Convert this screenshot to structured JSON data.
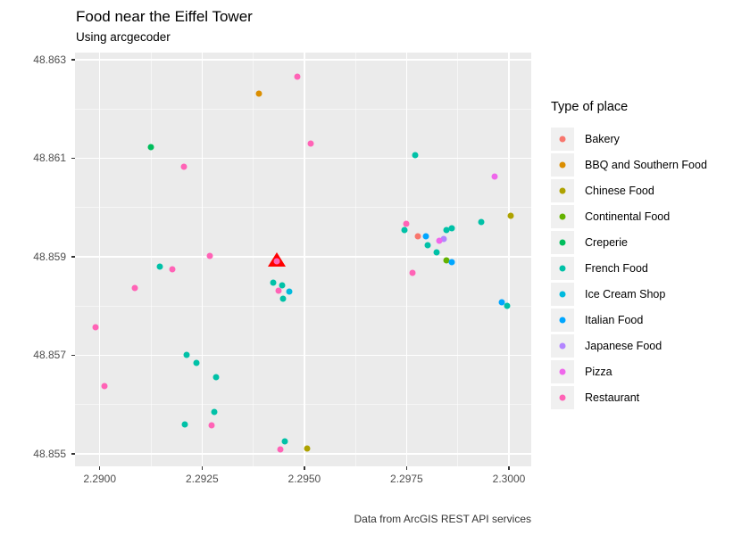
{
  "chart_data": {
    "type": "scatter",
    "title": "Food near the Eiffel Tower",
    "subtitle": "Using arcgecoder",
    "caption": "Data from ArcGIS REST API services",
    "legend_title": "Type of place",
    "xlabel": "",
    "ylabel": "",
    "grid": true,
    "legend_position": "right",
    "panel_bg": "#EBEBEB",
    "grid_color": "#FFFFFF",
    "axis_text_color": "#4D4D4D",
    "xlim": [
      2.289396,
      2.300545
    ],
    "ylim": [
      48.854741,
      48.863145
    ],
    "x_ticks": [
      2.29,
      2.2925,
      2.295,
      2.2975,
      2.3
    ],
    "x_tick_labels": [
      "2.2900",
      "2.2925",
      "2.2950",
      "2.2975",
      "2.3000"
    ],
    "y_ticks": [
      48.863,
      48.861,
      48.859,
      48.857,
      48.855
    ],
    "y_tick_labels": [
      "48.863",
      "48.861",
      "48.859",
      "48.857",
      "48.855"
    ],
    "eiffel_tower_marker": {
      "shape": "triangle",
      "color": "#FF0000",
      "x": 2.29433,
      "y": 48.85894
    },
    "series": [
      {
        "name": "Bakery",
        "color": "#F8766D",
        "points": [
          [
            2.29778,
            48.85941
          ]
        ]
      },
      {
        "name": "BBQ and Southern Food",
        "color": "#DB8E00",
        "points": [
          [
            2.29389,
            48.86231
          ]
        ]
      },
      {
        "name": "Chinese Food",
        "color": "#AEA200",
        "points": [
          [
            2.30005,
            48.85983
          ],
          [
            2.29506,
            48.8551
          ]
        ]
      },
      {
        "name": "Continental Food",
        "color": "#64B200",
        "points": [
          [
            2.29847,
            48.85893
          ]
        ]
      },
      {
        "name": "Creperie",
        "color": "#00BD5C",
        "points": [
          [
            2.29124,
            48.86122
          ]
        ]
      },
      {
        "name": "French Food",
        "color": "#00C1A7",
        "points": [
          [
            2.29771,
            48.86107
          ],
          [
            2.29932,
            48.85971
          ],
          [
            2.29744,
            48.85954
          ],
          [
            2.29848,
            48.85954
          ],
          [
            2.2986,
            48.85957
          ],
          [
            2.29802,
            48.85923
          ],
          [
            2.29824,
            48.85909
          ],
          [
            2.29996,
            48.85801
          ],
          [
            2.29146,
            48.85879
          ],
          [
            2.29424,
            48.85847
          ],
          [
            2.29446,
            48.85842
          ],
          [
            2.29447,
            48.85815
          ],
          [
            2.29212,
            48.857
          ],
          [
            2.29236,
            48.85684
          ],
          [
            2.29284,
            48.85656
          ],
          [
            2.2928,
            48.85585
          ],
          [
            2.29207,
            48.85559
          ],
          [
            2.29453,
            48.85524
          ]
        ]
      },
      {
        "name": "Ice Cream Shop",
        "color": "#00BADE",
        "points": [
          [
            2.29464,
            48.85829
          ]
        ]
      },
      {
        "name": "Italian Food",
        "color": "#00A6FF",
        "points": [
          [
            2.29796,
            48.85941
          ],
          [
            2.2986,
            48.85889
          ],
          [
            2.29982,
            48.85807
          ]
        ]
      },
      {
        "name": "Japanese Food",
        "color": "#B385FF",
        "points": [
          [
            2.2984,
            48.85936
          ]
        ]
      },
      {
        "name": "Pizza",
        "color": "#EF67EB",
        "points": [
          [
            2.29964,
            48.86063
          ],
          [
            2.29829,
            48.85932
          ]
        ]
      },
      {
        "name": "Restaurant",
        "color": "#FF63B6",
        "points": [
          [
            2.29482,
            48.86266
          ],
          [
            2.29515,
            48.86129
          ],
          [
            2.29206,
            48.86082
          ],
          [
            2.29749,
            48.85966
          ],
          [
            2.29765,
            48.85867
          ],
          [
            2.29086,
            48.85837
          ],
          [
            2.2899,
            48.85756
          ],
          [
            2.29011,
            48.85638
          ],
          [
            2.29178,
            48.85874
          ],
          [
            2.29269,
            48.85901
          ],
          [
            2.29433,
            48.8589
          ],
          [
            2.29436,
            48.85831
          ],
          [
            2.29274,
            48.85558
          ],
          [
            2.29442,
            48.85509
          ]
        ]
      }
    ]
  }
}
